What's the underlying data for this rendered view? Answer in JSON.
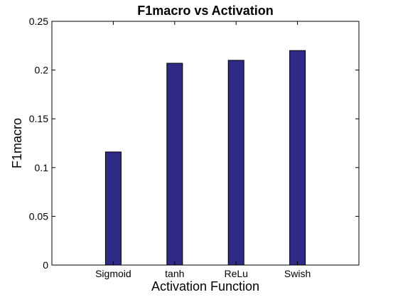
{
  "chart_data": {
    "type": "bar",
    "title": "F1macro vs Activation",
    "xlabel": "Activation Function",
    "ylabel": "F1macro",
    "categories": [
      "Sigmoid",
      "tanh",
      "ReLu",
      "Swish"
    ],
    "values": [
      0.116,
      0.207,
      0.21,
      0.22
    ],
    "ylim": [
      0,
      0.25
    ],
    "yticks": [
      0,
      0.05,
      0.1,
      0.15,
      0.2,
      0.25
    ],
    "ytick_labels": [
      "0",
      "0.05",
      "0.1",
      "0.15",
      "0.2",
      "0.25"
    ],
    "bar_color": "#2e2a85",
    "grid": false,
    "legend": false
  }
}
